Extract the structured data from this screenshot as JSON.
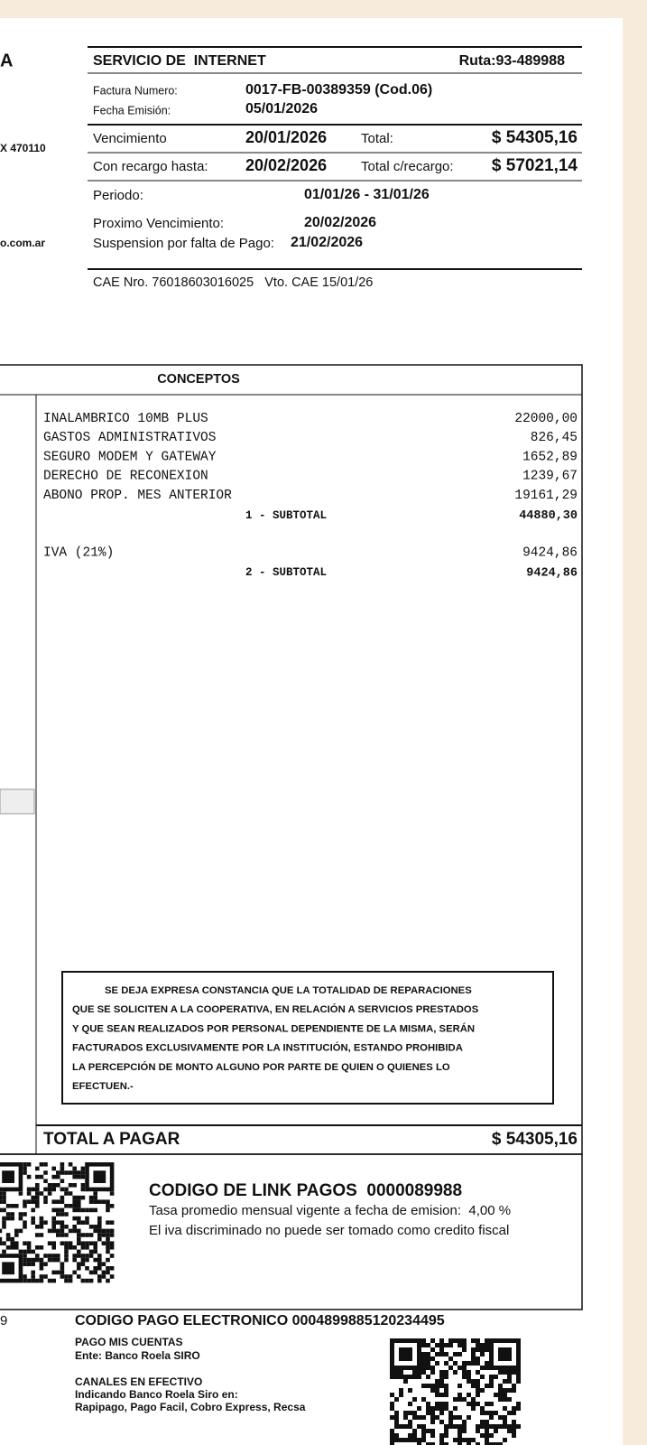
{
  "left_edge": {
    "letter": "A",
    "postal": "X 470110",
    "web": "o.com.ar",
    "code_tail": "9"
  },
  "header": {
    "service": "SERVICIO DE  INTERNET",
    "route": "Ruta:93-489988",
    "invoice_label": "Factura Numero:",
    "invoice_number": "0017-FB-00389359 (Cod.06)",
    "issue_label": "Fecha Emisión:",
    "issue_date": "05/01/2026",
    "due_label": "Vencimiento",
    "due_date": "20/01/2026",
    "total_label": "Total:",
    "total": "$ 54305,16",
    "surcharge_label": "Con recargo hasta:",
    "surcharge_date": "20/02/2026",
    "surcharge_total_label": "Total c/recargo:",
    "surcharge_total": "$ 57021,14",
    "period_label": "Periodo:",
    "period": "01/01/26 - 31/01/26",
    "next_due_label": "Proximo Vencimiento:",
    "next_due": "20/02/2026",
    "suspension_label": "Suspension por falta de Pago:",
    "suspension_date": "21/02/2026",
    "cae": "CAE Nro. 76018603016025   Vto. CAE 15/01/26"
  },
  "concepts": {
    "title": "CONCEPTOS",
    "groups": [
      {
        "items": [
          {
            "label": "INALAMBRICO 10MB PLUS",
            "amount": "22000,00"
          },
          {
            "label": "GASTOS ADMINISTRATIVOS",
            "amount": "826,45"
          },
          {
            "label": "SEGURO MODEM Y GATEWAY",
            "amount": "1652,89"
          },
          {
            "label": "DERECHO DE RECONEXION",
            "amount": "1239,67"
          },
          {
            "label": "ABONO PROP. MES ANTERIOR",
            "amount": "19161,29"
          }
        ],
        "subtotal": {
          "label": "1 - SUBTOTAL",
          "amount": "44880,30"
        }
      },
      {
        "items": [
          {
            "label": "IVA (21%)",
            "amount": "9424,86"
          }
        ],
        "subtotal": {
          "label": "2 - SUBTOTAL",
          "amount": "9424,86"
        }
      }
    ]
  },
  "notice": [
    "SE DEJA EXPRESA CONSTANCIA QUE LA TOTALIDAD DE REPARACIONES",
    "QUE SE SOLICITEN A LA COOPERATIVA, EN RELACIÓN A SERVICIOS PRESTADOS",
    "Y QUE SEAN REALIZADOS POR PERSONAL DEPENDIENTE DE LA MISMA, SERÁN",
    "FACTURADOS EXCLUSIVAMENTE POR LA INSTITUCIÓN, ESTANDO PROHIBIDA",
    "LA PERCEPCIÓN DE MONTO ALGUNO POR PARTE DE QUIEN O QUIENES LO",
    "EFECTUEN.-"
  ],
  "total": {
    "label": "TOTAL A PAGAR",
    "amount": "$ 54305,16"
  },
  "link_pagos": {
    "title": "CODIGO DE LINK PAGOS  0000089988",
    "lines": [
      "Tasa promedio mensual vigente a fecha de emision:  4,00 %",
      "El iva discriminado no puede ser tomado como credito fiscal"
    ]
  },
  "payment": {
    "code": "CODIGO PAGO ELECTRONICO 0004899885120234495",
    "pmc_title": "PAGO MIS CUENTAS",
    "pmc_entity": "Ente: Banco Roela SIRO",
    "cash_title": "CANALES EN EFECTIVO",
    "cash_lines": [
      "Indicando Banco Roela Siro en:",
      "Rapipago, Pago Facil, Cobro Express, Recsa"
    ]
  }
}
